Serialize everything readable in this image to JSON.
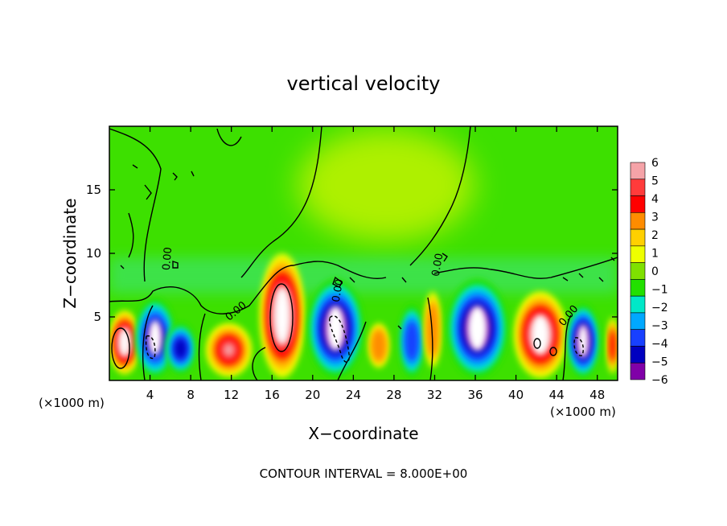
{
  "chart_data": {
    "type": "heatmap",
    "title": "vertical velocity",
    "xlabel": "X−coordinate",
    "ylabel": "Z−coordinate",
    "x_unit_left": "(×1000 m)",
    "x_unit_right": "(×1000 m)",
    "footer": "CONTOUR INTERVAL = 8.000E+00",
    "contour_label": "0.00",
    "xlim": [
      0,
      50
    ],
    "ylim": [
      0,
      20
    ],
    "x_ticks": [
      4,
      8,
      12,
      16,
      20,
      24,
      28,
      32,
      36,
      40,
      44,
      48
    ],
    "y_ticks": [
      5,
      10,
      15
    ],
    "colorbar": {
      "ticks": [
        "6",
        "5",
        "4",
        "3",
        "2",
        "1",
        "0",
        "−1",
        "−2",
        "−3",
        "−4",
        "−5",
        "−6"
      ],
      "values": [
        6,
        5,
        4,
        3,
        2,
        1,
        0,
        -1,
        -2,
        -3,
        -4,
        -5,
        -6
      ],
      "colors": [
        "#f5a3a8",
        "#ff3b3b",
        "#ff0000",
        "#ff8c00",
        "#ffd000",
        "#eeff00",
        "#7fe000",
        "#22e000",
        "#00e8c8",
        "#00a8ff",
        "#1840ff",
        "#0000c0",
        "#8000a8"
      ]
    },
    "cells": [
      {
        "x0": 0,
        "x1": 3,
        "z0": 0.5,
        "z1": 5.5,
        "peak": 8
      },
      {
        "x0": 2.5,
        "x1": 6.5,
        "z0": 0.2,
        "z1": 6.5,
        "peak": -7
      },
      {
        "x0": 5.5,
        "x1": 8.5,
        "z0": 0.5,
        "z1": 4.5,
        "peak": -5
      },
      {
        "x0": 9.5,
        "x1": 14,
        "z0": 0.3,
        "z1": 4.5,
        "peak": 6
      },
      {
        "x0": 14.8,
        "x1": 19.2,
        "z0": 0.2,
        "z1": 10,
        "peak": 9
      },
      {
        "x0": 19.5,
        "x1": 25,
        "z0": 0.2,
        "z1": 8,
        "peak": -8
      },
      {
        "x0": 25.5,
        "x1": 27.5,
        "z0": 1,
        "z1": 4.5,
        "peak": 3
      },
      {
        "x0": 28.5,
        "x1": 31,
        "z0": 0.2,
        "z1": 6,
        "peak": -4
      },
      {
        "x0": 31,
        "x1": 32.6,
        "z0": 1,
        "z1": 7,
        "peak": 3
      },
      {
        "x0": 33.2,
        "x1": 39.2,
        "z0": 0.2,
        "z1": 8,
        "peak": -8
      },
      {
        "x0": 39.8,
        "x1": 45,
        "z0": 0.2,
        "z1": 7,
        "peak": 8
      },
      {
        "x0": 45,
        "x1": 48.2,
        "z0": 0.2,
        "z1": 6,
        "peak": -8
      },
      {
        "x0": 49,
        "x1": 50,
        "z0": 0.5,
        "z1": 5,
        "peak": 4
      }
    ]
  }
}
